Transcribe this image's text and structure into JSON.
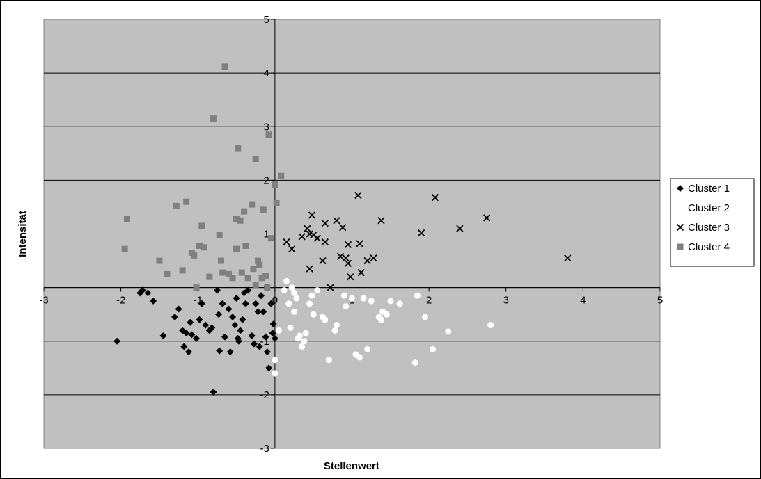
{
  "chart_data": {
    "type": "scatter",
    "title": "",
    "xlabel": "Stellenwert",
    "ylabel": "Intensität",
    "xlim": [
      -3,
      5
    ],
    "ylim": [
      -3,
      5
    ],
    "x_ticks": [
      -3,
      -2,
      -1,
      0,
      1,
      2,
      3,
      4,
      5
    ],
    "y_ticks": [
      -3,
      -2,
      -1,
      0,
      1,
      2,
      3,
      4,
      5
    ],
    "grid": "horizontal",
    "plot_background": "#c0c0c0",
    "legend_position": "right",
    "series": [
      {
        "name": "Cluster 1",
        "marker": "diamond",
        "color": "#000000",
        "points": [
          [
            -2.05,
            -1.0
          ],
          [
            -1.75,
            -0.1
          ],
          [
            -1.72,
            -0.05
          ],
          [
            -1.65,
            -0.1
          ],
          [
            -1.58,
            -0.25
          ],
          [
            -1.45,
            -0.9
          ],
          [
            -1.3,
            -0.55
          ],
          [
            -1.25,
            -0.4
          ],
          [
            -1.2,
            -0.8
          ],
          [
            -1.18,
            -1.1
          ],
          [
            -1.15,
            -0.85
          ],
          [
            -1.12,
            -1.2
          ],
          [
            -1.1,
            -0.65
          ],
          [
            -1.08,
            -0.88
          ],
          [
            -1.02,
            -0.95
          ],
          [
            -0.98,
            -0.6
          ],
          [
            -0.95,
            -0.3
          ],
          [
            -0.9,
            -0.7
          ],
          [
            -0.85,
            -0.8
          ],
          [
            -0.82,
            -0.75
          ],
          [
            -0.8,
            -1.95
          ],
          [
            -0.75,
            -0.05
          ],
          [
            -0.73,
            -0.5
          ],
          [
            -0.72,
            -1.18
          ],
          [
            -0.68,
            -0.3
          ],
          [
            -0.65,
            -0.92
          ],
          [
            -0.6,
            -0.4
          ],
          [
            -0.58,
            -1.2
          ],
          [
            -0.55,
            -0.55
          ],
          [
            -0.52,
            -0.7
          ],
          [
            -0.5,
            -0.2
          ],
          [
            -0.48,
            -0.95
          ],
          [
            -0.47,
            -1.0
          ],
          [
            -0.45,
            -0.8
          ],
          [
            -0.42,
            -0.6
          ],
          [
            -0.4,
            -0.1
          ],
          [
            -0.38,
            -0.3
          ],
          [
            -0.35,
            -0.05
          ],
          [
            -0.3,
            -0.9
          ],
          [
            -0.27,
            -1.05
          ],
          [
            -0.25,
            -0.3
          ],
          [
            -0.22,
            -0.45
          ],
          [
            -0.2,
            -1.1
          ],
          [
            -0.18,
            -0.15
          ],
          [
            -0.15,
            -0.45
          ],
          [
            -0.12,
            -0.92
          ],
          [
            -0.1,
            -1.2
          ],
          [
            -0.08,
            -1.5
          ],
          [
            -0.05,
            -0.3
          ],
          [
            -0.03,
            -0.85
          ],
          [
            -0.02,
            -0.68
          ],
          [
            0.0,
            -0.95
          ]
        ]
      },
      {
        "name": "Cluster 2",
        "marker": "circle",
        "color": "#ffffff",
        "points": [
          [
            0.0,
            -1.6
          ],
          [
            0.0,
            -1.35
          ],
          [
            0.05,
            -0.8
          ],
          [
            0.12,
            -0.05
          ],
          [
            0.15,
            0.12
          ],
          [
            0.18,
            -0.3
          ],
          [
            0.2,
            -0.75
          ],
          [
            0.22,
            0.0
          ],
          [
            0.25,
            -0.45
          ],
          [
            0.25,
            -0.1
          ],
          [
            0.28,
            -0.2
          ],
          [
            0.3,
            -0.95
          ],
          [
            0.32,
            -0.9
          ],
          [
            0.35,
            -1.1
          ],
          [
            0.38,
            -1.0
          ],
          [
            0.4,
            -0.85
          ],
          [
            0.45,
            -0.3
          ],
          [
            0.48,
            -0.15
          ],
          [
            0.5,
            -0.5
          ],
          [
            0.55,
            -0.05
          ],
          [
            0.62,
            -0.55
          ],
          [
            0.65,
            -0.6
          ],
          [
            0.7,
            -1.35
          ],
          [
            0.78,
            -0.8
          ],
          [
            0.8,
            -0.7
          ],
          [
            0.9,
            -0.15
          ],
          [
            0.92,
            -0.35
          ],
          [
            1.0,
            -0.2
          ],
          [
            1.05,
            -1.25
          ],
          [
            1.1,
            -1.3
          ],
          [
            1.15,
            -0.2
          ],
          [
            1.2,
            -1.15
          ],
          [
            1.25,
            -0.25
          ],
          [
            1.35,
            -0.55
          ],
          [
            1.38,
            -0.6
          ],
          [
            1.4,
            -0.45
          ],
          [
            1.45,
            -0.5
          ],
          [
            1.5,
            -0.25
          ],
          [
            1.62,
            -0.3
          ],
          [
            1.82,
            -1.4
          ],
          [
            1.85,
            -0.15
          ],
          [
            1.95,
            -0.55
          ],
          [
            2.05,
            -1.15
          ],
          [
            2.25,
            -0.82
          ],
          [
            2.8,
            -0.7
          ]
        ]
      },
      {
        "name": "Cluster 3",
        "marker": "x",
        "color": "#000000",
        "points": [
          [
            0.15,
            0.85
          ],
          [
            0.22,
            0.72
          ],
          [
            0.35,
            0.95
          ],
          [
            0.42,
            1.1
          ],
          [
            0.45,
            0.35
          ],
          [
            0.45,
            1.0
          ],
          [
            0.48,
            1.35
          ],
          [
            0.5,
            0.98
          ],
          [
            0.55,
            0.92
          ],
          [
            0.62,
            0.5
          ],
          [
            0.65,
            0.85
          ],
          [
            0.65,
            1.2
          ],
          [
            0.72,
            0.0
          ],
          [
            0.8,
            1.25
          ],
          [
            0.85,
            0.58
          ],
          [
            0.88,
            1.12
          ],
          [
            0.92,
            0.55
          ],
          [
            0.95,
            0.45
          ],
          [
            0.95,
            0.8
          ],
          [
            0.98,
            0.2
          ],
          [
            1.08,
            1.72
          ],
          [
            1.1,
            0.82
          ],
          [
            1.12,
            0.28
          ],
          [
            1.2,
            0.5
          ],
          [
            1.28,
            0.55
          ],
          [
            1.38,
            1.25
          ],
          [
            1.9,
            1.02
          ],
          [
            2.08,
            1.68
          ],
          [
            2.4,
            1.1
          ],
          [
            2.75,
            1.3
          ],
          [
            3.8,
            0.55
          ]
        ]
      },
      {
        "name": "Cluster 4",
        "marker": "square",
        "color": "#808080",
        "points": [
          [
            -1.95,
            0.72
          ],
          [
            -1.92,
            1.28
          ],
          [
            -1.5,
            0.5
          ],
          [
            -1.4,
            0.25
          ],
          [
            -1.28,
            1.52
          ],
          [
            -1.2,
            0.32
          ],
          [
            -1.15,
            1.6
          ],
          [
            -1.08,
            0.65
          ],
          [
            -1.05,
            0.6
          ],
          [
            -1.02,
            0.0
          ],
          [
            -0.98,
            0.78
          ],
          [
            -0.95,
            1.15
          ],
          [
            -0.92,
            0.75
          ],
          [
            -0.85,
            0.2
          ],
          [
            -0.8,
            3.15
          ],
          [
            -0.72,
            0.98
          ],
          [
            -0.7,
            0.5
          ],
          [
            -0.68,
            0.28
          ],
          [
            -0.65,
            4.12
          ],
          [
            -0.6,
            0.25
          ],
          [
            -0.55,
            0.18
          ],
          [
            -0.5,
            1.28
          ],
          [
            -0.5,
            0.72
          ],
          [
            -0.48,
            2.6
          ],
          [
            -0.45,
            1.25
          ],
          [
            -0.43,
            0.28
          ],
          [
            -0.4,
            1.42
          ],
          [
            -0.38,
            0.78
          ],
          [
            -0.35,
            0.18
          ],
          [
            -0.3,
            1.55
          ],
          [
            -0.28,
            0.35
          ],
          [
            -0.25,
            0.05
          ],
          [
            -0.25,
            2.4
          ],
          [
            -0.22,
            0.5
          ],
          [
            -0.2,
            0.42
          ],
          [
            -0.17,
            0.18
          ],
          [
            -0.15,
            1.45
          ],
          [
            -0.12,
            0.22
          ],
          [
            -0.1,
            0.0
          ],
          [
            -0.08,
            2.85
          ],
          [
            -0.05,
            0.92
          ],
          [
            0.0,
            1.92
          ],
          [
            0.02,
            1.58
          ],
          [
            0.08,
            2.08
          ]
        ]
      }
    ]
  }
}
